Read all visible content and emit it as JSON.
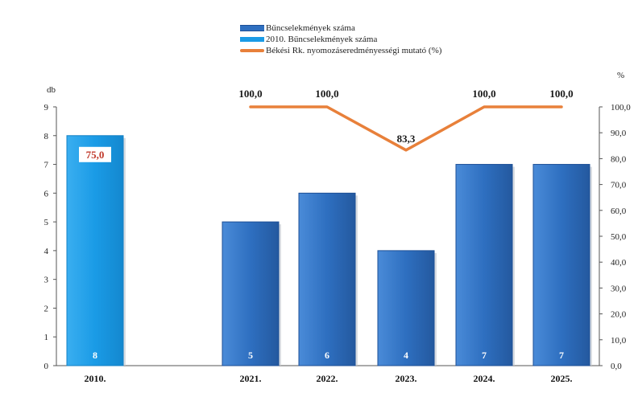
{
  "colors": {
    "bar_main": "#2e6fc0",
    "bar_2010": "#1a9be6",
    "line": "#e8803a",
    "line_label": "#1a1a1a",
    "label_2010": "#c0392b"
  },
  "legend": [
    {
      "label": "Bűncselekmények száma"
    },
    {
      "label": "2010. Bűncselekmények száma"
    },
    {
      "label": "Békési Rk. nyomozáseredményességi mutató (%)"
    }
  ],
  "chart_data": {
    "type": "bar",
    "categories": [
      "2010.",
      "2021.",
      "2022.",
      "2023.",
      "2024.",
      "2025."
    ],
    "series": [
      {
        "name": "Bűncselekmények száma",
        "type": "bar",
        "axis": "left",
        "values": [
          8,
          5,
          6,
          4,
          7,
          7
        ]
      },
      {
        "name": "Békési Rk. nyomozáseredményességi mutató (%)",
        "type": "line",
        "axis": "right",
        "values": [
          75.0,
          100.0,
          100.0,
          83.3,
          100.0,
          100.0
        ],
        "labels": [
          "75,0",
          "100,0",
          "100,0",
          "83,3",
          "100,0",
          "100,0"
        ]
      }
    ],
    "y_left": {
      "label": "db",
      "min": 0,
      "max": 9,
      "ticks": [
        "0",
        "1",
        "2",
        "3",
        "4",
        "5",
        "6",
        "7",
        "8",
        "9"
      ]
    },
    "y_right": {
      "label": "%",
      "min": 0,
      "max": 100,
      "ticks": [
        "0,0",
        "10,0",
        "20,0",
        "30,0",
        "40,0",
        "50,0",
        "60,0",
        "70,0",
        "80,0",
        "90,0",
        "100,0"
      ]
    },
    "grid": false,
    "legend_position": "top-center"
  }
}
